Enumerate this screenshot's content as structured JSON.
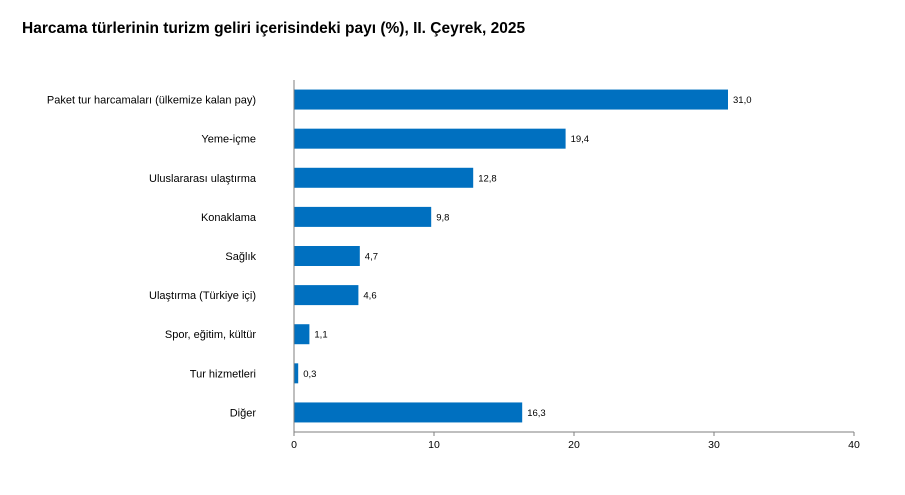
{
  "chart_data": {
    "type": "bar",
    "orientation": "horizontal",
    "title": "Harcama türlerinin turizm geliri içerisindeki payı (%), II. Çeyrek, 2025",
    "categories": [
      "Paket tur harcamaları (ülkemize kalan pay)",
      "Yeme-içme",
      "Uluslararası ulaştırma",
      "Konaklama",
      "Sağlık",
      "Ulaştırma (Türkiye içi)",
      "Spor, eğitim, kültür",
      "Tur hizmetleri",
      "Diğer"
    ],
    "values": [
      31.0,
      19.4,
      12.8,
      9.8,
      4.7,
      4.6,
      1.1,
      0.3,
      16.3
    ],
    "value_labels": [
      "31,0",
      "19,4",
      "12,8",
      "9,8",
      "4,7",
      "4,6",
      "1,1",
      "0,3",
      "16,3"
    ],
    "xlim": [
      0,
      40
    ],
    "x_ticks": [
      0,
      10,
      20,
      30,
      40
    ],
    "x_tick_labels": [
      "0",
      "10",
      "20",
      "30",
      "40"
    ],
    "grid": false,
    "legend": "none",
    "bar_color": "#0070c0",
    "axis_color": "#7f7f7f"
  }
}
